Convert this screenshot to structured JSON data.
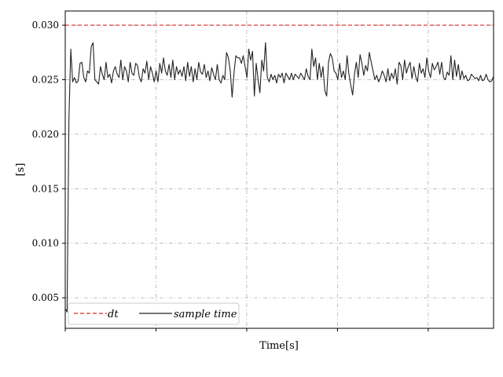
{
  "chart_data": {
    "type": "line",
    "title": "",
    "xlabel": "Time[s]",
    "ylabel": "[s]",
    "ylim": [
      0.0022,
      0.0313
    ],
    "xlim": [
      0,
      236
    ],
    "yticks": [
      "0.005",
      "0.010",
      "0.015",
      "0.020",
      "0.025",
      "0.030"
    ],
    "ytick_values": [
      0.005,
      0.01,
      0.015,
      0.02,
      0.025,
      0.03
    ],
    "xtick_values": [
      0,
      50,
      100,
      150,
      200
    ],
    "xticks_labeled": false,
    "grid": true,
    "legend_position": "lower-left",
    "series": [
      {
        "name": "dt",
        "style": "dashed",
        "color": "#d62728",
        "constant": 0.03
      },
      {
        "name": "sample time",
        "style": "solid",
        "color": "#222222",
        "values": [
          0.004,
          0.0037,
          0.0215,
          0.0278,
          0.0248,
          0.0252,
          0.0247,
          0.0249,
          0.0265,
          0.0266,
          0.0252,
          0.0248,
          0.0258,
          0.0256,
          0.028,
          0.0284,
          0.025,
          0.0248,
          0.0246,
          0.0262,
          0.0255,
          0.025,
          0.0266,
          0.0252,
          0.0255,
          0.0247,
          0.0258,
          0.0262,
          0.0255,
          0.0252,
          0.0268,
          0.025,
          0.0262,
          0.0258,
          0.0248,
          0.0266,
          0.0256,
          0.0254,
          0.0265,
          0.0263,
          0.0252,
          0.0248,
          0.026,
          0.0256,
          0.0267,
          0.025,
          0.0262,
          0.0256,
          0.0248,
          0.0258,
          0.0248,
          0.0265,
          0.0256,
          0.027,
          0.0258,
          0.0254,
          0.0264,
          0.0252,
          0.0268,
          0.025,
          0.0262,
          0.0255,
          0.0259,
          0.0253,
          0.0262,
          0.0249,
          0.0266,
          0.0253,
          0.0262,
          0.0248,
          0.026,
          0.025,
          0.0266,
          0.0257,
          0.0255,
          0.0264,
          0.0252,
          0.0258,
          0.0249,
          0.0261,
          0.0255,
          0.025,
          0.0264,
          0.025,
          0.0247,
          0.0254,
          0.025,
          0.0275,
          0.027,
          0.0258,
          0.0234,
          0.0256,
          0.0272,
          0.027,
          0.027,
          0.0265,
          0.0272,
          0.0262,
          0.0252,
          0.0278,
          0.0268,
          0.0276,
          0.0235,
          0.0265,
          0.025,
          0.0238,
          0.0268,
          0.0258,
          0.0284,
          0.0252,
          0.0248,
          0.0255,
          0.025,
          0.0254,
          0.0247,
          0.0255,
          0.0252,
          0.0256,
          0.0247,
          0.0256,
          0.0253,
          0.025,
          0.0256,
          0.025,
          0.0255,
          0.0253,
          0.0251,
          0.0256,
          0.0253,
          0.025,
          0.026,
          0.0253,
          0.025,
          0.0278,
          0.0262,
          0.027,
          0.025,
          0.0265,
          0.0252,
          0.0262,
          0.024,
          0.0235,
          0.0266,
          0.0274,
          0.027,
          0.0258,
          0.0256,
          0.025,
          0.0265,
          0.0252,
          0.0258,
          0.025,
          0.0272,
          0.0255,
          0.0245,
          0.0236,
          0.0255,
          0.0266,
          0.0252,
          0.0273,
          0.0265,
          0.0254,
          0.0263,
          0.0258,
          0.0275,
          0.0266,
          0.0258,
          0.025,
          0.0254,
          0.0248,
          0.0252,
          0.0258,
          0.0254,
          0.0248,
          0.026,
          0.0249,
          0.0256,
          0.0251,
          0.026,
          0.0246,
          0.0266,
          0.0263,
          0.025,
          0.0268,
          0.0256,
          0.0262,
          0.0266,
          0.0251,
          0.0262,
          0.0253,
          0.0248,
          0.0265,
          0.0256,
          0.026,
          0.0252,
          0.027,
          0.0258,
          0.0252,
          0.0265,
          0.0259,
          0.0262,
          0.0266,
          0.0255,
          0.0266,
          0.0252,
          0.025,
          0.0257,
          0.0254,
          0.0272,
          0.025,
          0.0268,
          0.0253,
          0.0264,
          0.025,
          0.0258,
          0.0251,
          0.0254,
          0.0249,
          0.025,
          0.0255,
          0.0253,
          0.0251,
          0.0252,
          0.0249,
          0.0254,
          0.0249,
          0.025,
          0.0255,
          0.025,
          0.0248,
          0.0249,
          0.0253
        ]
      }
    ]
  }
}
